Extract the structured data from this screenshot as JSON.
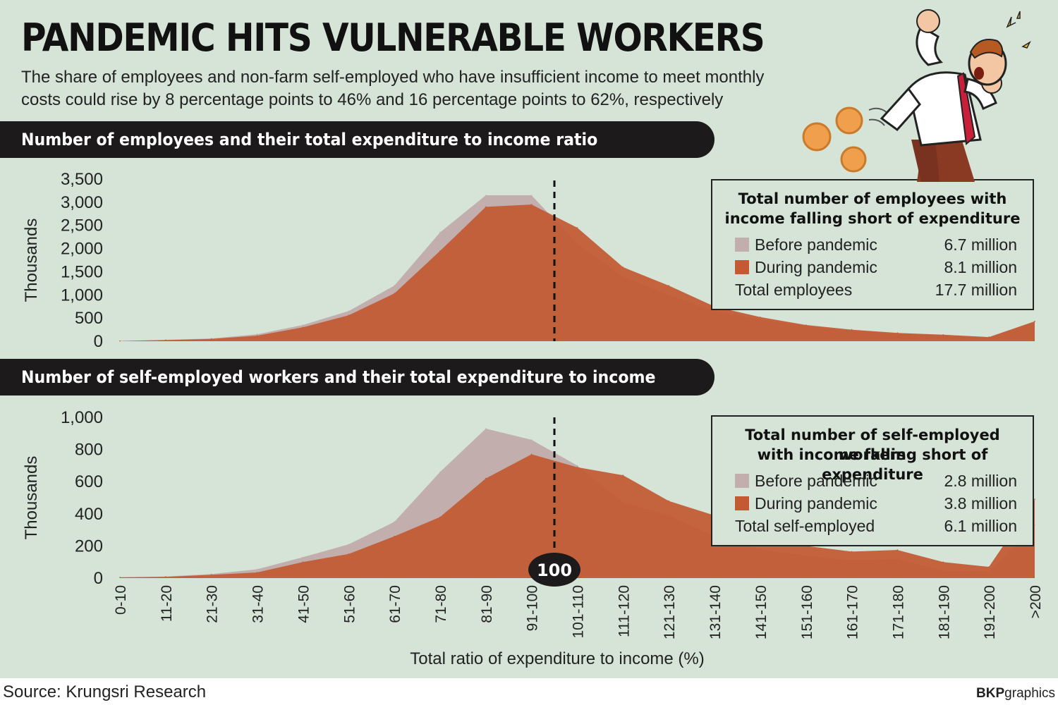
{
  "header": {
    "title": "PANDEMIC HITS VULNERABLE WORKERS",
    "subtitle_line1": "The share of employees and non-farm self-employed who have insufficient income to meet monthly",
    "subtitle_line2": "costs could rise by 8 percentage points to 46% and 16 percentage points to 62%, respectively"
  },
  "sections": [
    {
      "heading": "Number of employees and their total expenditure to income ratio",
      "legend": {
        "title_line1": "Total number of employees with",
        "title_line2": "income falling short of expenditure",
        "rows": [
          {
            "label": "Before pandemic",
            "value": "6.7 million"
          },
          {
            "label": "During pandemic",
            "value": "8.1 million"
          },
          {
            "label": "Total employees",
            "value": "17.7 million"
          }
        ]
      }
    },
    {
      "heading": "Number of self-employed workers and their total expenditure to income",
      "legend": {
        "title_line1": "Total number of self-employed workers",
        "title_line2": "with income falling short of expenditure",
        "rows": [
          {
            "label": "Before pandemic",
            "value": "2.8 million"
          },
          {
            "label": "During pandemic",
            "value": "3.8 million"
          },
          {
            "label": "Total self-employed",
            "value": "6.1 million"
          }
        ]
      }
    }
  ],
  "marker_label": "100",
  "source": "Source: Krungsri Research",
  "credit_bold": "BKP",
  "credit_rest": "graphics",
  "colors": {
    "before": "#c2aeac",
    "during": "#c35a34",
    "background": "#d5e4d6",
    "dark": "#1c1a1a"
  },
  "chart_data": [
    {
      "type": "area",
      "categories": [
        "0-10",
        "11-20",
        "21-30",
        "31-40",
        "41-50",
        "51-60",
        "61-70",
        "71-80",
        "81-90",
        "91-100",
        "101-110",
        "111-120",
        "121-130",
        "131-140",
        "141-150",
        "151-160",
        "161-170",
        "171-180",
        "181-190",
        "191-200",
        ">200"
      ],
      "series": [
        {
          "name": "Before pandemic",
          "values": [
            5,
            30,
            60,
            150,
            350,
            650,
            1200,
            2350,
            3150,
            3150,
            2100,
            1400,
            1000,
            650,
            470,
            330,
            230,
            160,
            130,
            80,
            420
          ]
        },
        {
          "name": "During pandemic",
          "values": [
            5,
            25,
            50,
            120,
            300,
            560,
            1030,
            1950,
            2900,
            2950,
            2450,
            1600,
            1200,
            750,
            520,
            350,
            250,
            180,
            140,
            90,
            430
          ]
        }
      ],
      "ylabel": "Thousands",
      "yticks": [
        "3,500",
        "3,000",
        "2,500",
        "2,000",
        "1,500",
        "1,000",
        "500",
        "0"
      ],
      "ylim": [
        0,
        3500
      ],
      "marker_x": 100,
      "grid": false,
      "legend_position": "right"
    },
    {
      "type": "area",
      "categories": [
        "0-10",
        "11-20",
        "21-30",
        "31-40",
        "41-50",
        "51-60",
        "61-70",
        "71-80",
        "81-90",
        "91-100",
        "101-110",
        "111-120",
        "121-130",
        "131-140",
        "141-150",
        "151-160",
        "161-170",
        "171-180",
        "181-190",
        "191-200",
        ">200"
      ],
      "series": [
        {
          "name": "Before pandemic",
          "values": [
            5,
            10,
            25,
            55,
            130,
            210,
            350,
            660,
            930,
            860,
            700,
            470,
            390,
            260,
            180,
            140,
            110,
            120,
            45,
            40,
            330
          ]
        },
        {
          "name": "During pandemic",
          "values": [
            5,
            8,
            20,
            35,
            100,
            150,
            260,
            380,
            620,
            770,
            690,
            640,
            480,
            390,
            290,
            200,
            165,
            175,
            100,
            70,
            490
          ]
        }
      ],
      "ylabel": "Thousands",
      "yticks": [
        "1,000",
        "800",
        "600",
        "400",
        "200",
        "0"
      ],
      "ylim": [
        0,
        1000
      ],
      "xlabel": "Total ratio of expenditure to income (%)",
      "marker_x": 100,
      "grid": false,
      "legend_position": "right"
    }
  ]
}
